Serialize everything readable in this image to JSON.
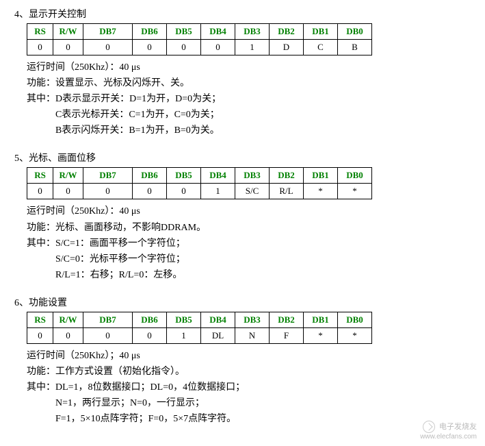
{
  "sections": [
    {
      "title": "4、显示开关控制",
      "headers": [
        "RS",
        "R/W",
        "DB7",
        "DB6",
        "DB5",
        "DB4",
        "DB3",
        "DB2",
        "DB1",
        "DB0"
      ],
      "row": [
        "0",
        "0",
        "0",
        "0",
        "0",
        "0",
        "1",
        "D",
        "C",
        "B"
      ],
      "runtime": "运行时间（250Khz）：40 μs",
      "func": "功能：设置显示、光标及闪烁开、关。",
      "details": [
        "其中：D表示显示开关：D=1为开，D=0为关；",
        "C表示光标开关：C=1为开，C=0为关；",
        "B表示闪烁开关：B=1为开，B=0为关。"
      ]
    },
    {
      "title": "5、光标、画面位移",
      "headers": [
        "RS",
        "R/W",
        "DB7",
        "DB6",
        "DB5",
        "DB4",
        "DB3",
        "DB2",
        "DB1",
        "DB0"
      ],
      "row": [
        "0",
        "0",
        "0",
        "0",
        "0",
        "1",
        "S/C",
        "R/L",
        "*",
        "*"
      ],
      "runtime": "运行时间（250Khz）：40 μs",
      "func": "功能：光标、画面移动，不影响DDRAM。",
      "details": [
        "其中：S/C=1：画面平移一个字符位；",
        "S/C=0：光标平移一个字符位；",
        "R/L=1：右移；R/L=0：左移。"
      ]
    },
    {
      "title": "6、功能设置",
      "headers": [
        "RS",
        "R/W",
        "DB7",
        "DB6",
        "DB5",
        "DB4",
        "DB3",
        "DB2",
        "DB1",
        "DB0"
      ],
      "row": [
        "0",
        "0",
        "0",
        "0",
        "1",
        "DL",
        "N",
        "F",
        "*",
        "*"
      ],
      "runtime": "运行时间（250Khz）；40 μs",
      "func": "功能：工作方式设置（初始化指令）。",
      "details": [
        "其中：DL=1，8位数据接口；DL=0，4位数据接口；",
        "N=1，两行显示；N=0，一行显示；",
        "F=1，5×10点阵字符；F=0，5×7点阵字符。"
      ]
    }
  ],
  "watermark": {
    "cn": "电子发烧友",
    "url": "www.elecfans.com"
  },
  "header_color": "#008000",
  "border_color": "#000000",
  "col_widths": {
    "rs": 38,
    "rw": 44,
    "db7": 72,
    "db": 50
  }
}
